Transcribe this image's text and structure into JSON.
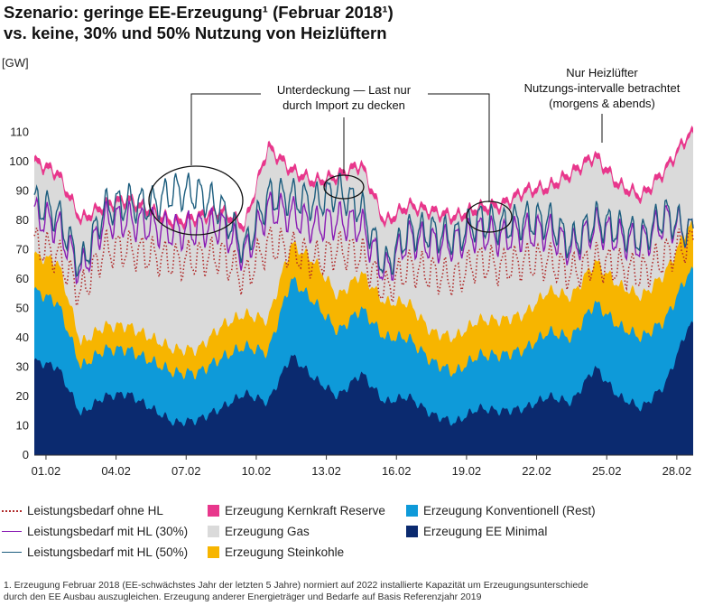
{
  "title_line1": "Szenario: geringe EE-Erzeugung¹ (Februar 2018¹)",
  "title_line2": "vs. keine, 30% und 50% Nutzung von Heizlüftern",
  "footnote_line1": "1. Erzeugung Februar 2018 (EE-schwächstes Jahr der letzten 5 Jahre) normiert auf 2022 installierte Kapazität um Erzeugungsunterschiede",
  "footnote_line2": "durch den EE Ausbau auszugleichen. Erzeugung anderer Energieträger und Bedarfe auf Basis Referenzjahr 2019",
  "chart_data": {
    "type": "area",
    "ylabel": "[GW]",
    "ylim": [
      0,
      115
    ],
    "yticks": [
      0,
      10,
      20,
      30,
      40,
      50,
      60,
      70,
      80,
      90,
      100,
      110
    ],
    "xlim": [
      1,
      29
    ],
    "xticks": [
      {
        "day": 1,
        "label": "01.02"
      },
      {
        "day": 4,
        "label": "04.02"
      },
      {
        "day": 7,
        "label": "07.02"
      },
      {
        "day": 10,
        "label": "10.02"
      },
      {
        "day": 13,
        "label": "13.02"
      },
      {
        "day": 16,
        "label": "16.02"
      },
      {
        "day": 19,
        "label": "19.02"
      },
      {
        "day": 22,
        "label": "22.02"
      },
      {
        "day": 25,
        "label": "25.02"
      },
      {
        "day": 28,
        "label": "28.02"
      }
    ],
    "day": [
      0.5,
      1.5,
      2.5,
      3.5,
      4.5,
      5.5,
      6.5,
      7.5,
      8.5,
      9.5,
      10.5,
      11.5,
      12.5,
      13.5,
      14.5,
      15.5,
      16.5,
      17.5,
      18.5,
      19.5,
      20.5,
      21.5,
      22.5,
      23.5,
      24.5,
      25.5,
      26.5,
      27.5,
      28.5
    ],
    "series": [
      {
        "name": "Erzeugung EE Minimal",
        "color": "#0b2a6f",
        "values": [
          32,
          30,
          14,
          20,
          21,
          16,
          11,
          12,
          16,
          21,
          18,
          34,
          26,
          20,
          28,
          18,
          20,
          14,
          11,
          16,
          15,
          16,
          20,
          18,
          30,
          20,
          16,
          24,
          44
        ]
      },
      {
        "name": "Erzeugung Konventionell (Rest)",
        "color": "#0e9ad9",
        "values": [
          56,
          52,
          30,
          36,
          36,
          32,
          28,
          28,
          33,
          37,
          35,
          60,
          52,
          42,
          50,
          40,
          40,
          32,
          28,
          34,
          34,
          36,
          42,
          40,
          52,
          44,
          40,
          46,
          62
        ]
      },
      {
        "name": "Erzeugung Steinkohle",
        "color": "#f7b500",
        "values": [
          68,
          66,
          38,
          44,
          44,
          40,
          36,
          36,
          44,
          48,
          46,
          72,
          66,
          54,
          62,
          52,
          52,
          42,
          40,
          46,
          46,
          48,
          56,
          54,
          66,
          58,
          54,
          62,
          78
        ]
      },
      {
        "name": "Erzeugung Gas",
        "color": "#dadada",
        "values": [
          99,
          95,
          79,
          84,
          86,
          82,
          78,
          80,
          82,
          77,
          104,
          96,
          92,
          94,
          98,
          78,
          84,
          82,
          80,
          83,
          84,
          89,
          90,
          95,
          101,
          91,
          87,
          96,
          108
        ]
      },
      {
        "name": "Erzeugung Kernkraft Reserve",
        "color": "#e8378c",
        "values": [
          101,
          97,
          81,
          86,
          88,
          84,
          80,
          82,
          84,
          79,
          106,
          98,
          94,
          96,
          100,
          80,
          86,
          84,
          82,
          85,
          86,
          91,
          92,
          97,
          103,
          93,
          89,
          98,
          110
        ]
      },
      {
        "name": "Leistungsbedarf ohne HL",
        "color": "#b02a2a",
        "style": "dotted",
        "values": [
          72,
          68,
          55,
          70,
          70,
          68,
          66,
          67,
          68,
          60,
          72,
          70,
          66,
          70,
          68,
          56,
          64,
          62,
          60,
          66,
          64,
          66,
          66,
          62,
          66,
          64,
          62,
          68,
          72
        ]
      },
      {
        "name": "Leistungsbedarf mit HL (30%)",
        "color": "#8a1cb4",
        "style": "solid",
        "values": [
          82,
          78,
          62,
          80,
          80,
          78,
          76,
          77,
          78,
          68,
          84,
          82,
          78,
          80,
          78,
          62,
          74,
          72,
          72,
          76,
          74,
          76,
          76,
          70,
          78,
          74,
          72,
          80,
          76
        ]
      },
      {
        "name": "Leistungsbedarf mit HL (50%)",
        "color": "#1c5d7e",
        "style": "solid",
        "values": [
          86,
          82,
          64,
          84,
          86,
          85,
          90,
          89,
          84,
          70,
          88,
          88,
          86,
          90,
          84,
          64,
          76,
          76,
          74,
          80,
          78,
          80,
          80,
          72,
          80,
          77,
          74,
          82,
          76
        ]
      }
    ],
    "annotations": [
      {
        "text_lines": [
          "Unterdeckung — Last nur",
          "durch Import zu decken"
        ]
      },
      {
        "text_lines": [
          "Nur Heizlüfter",
          "Nutzungs-intervalle betrachtet",
          "(morgens & abends)"
        ]
      }
    ]
  }
}
